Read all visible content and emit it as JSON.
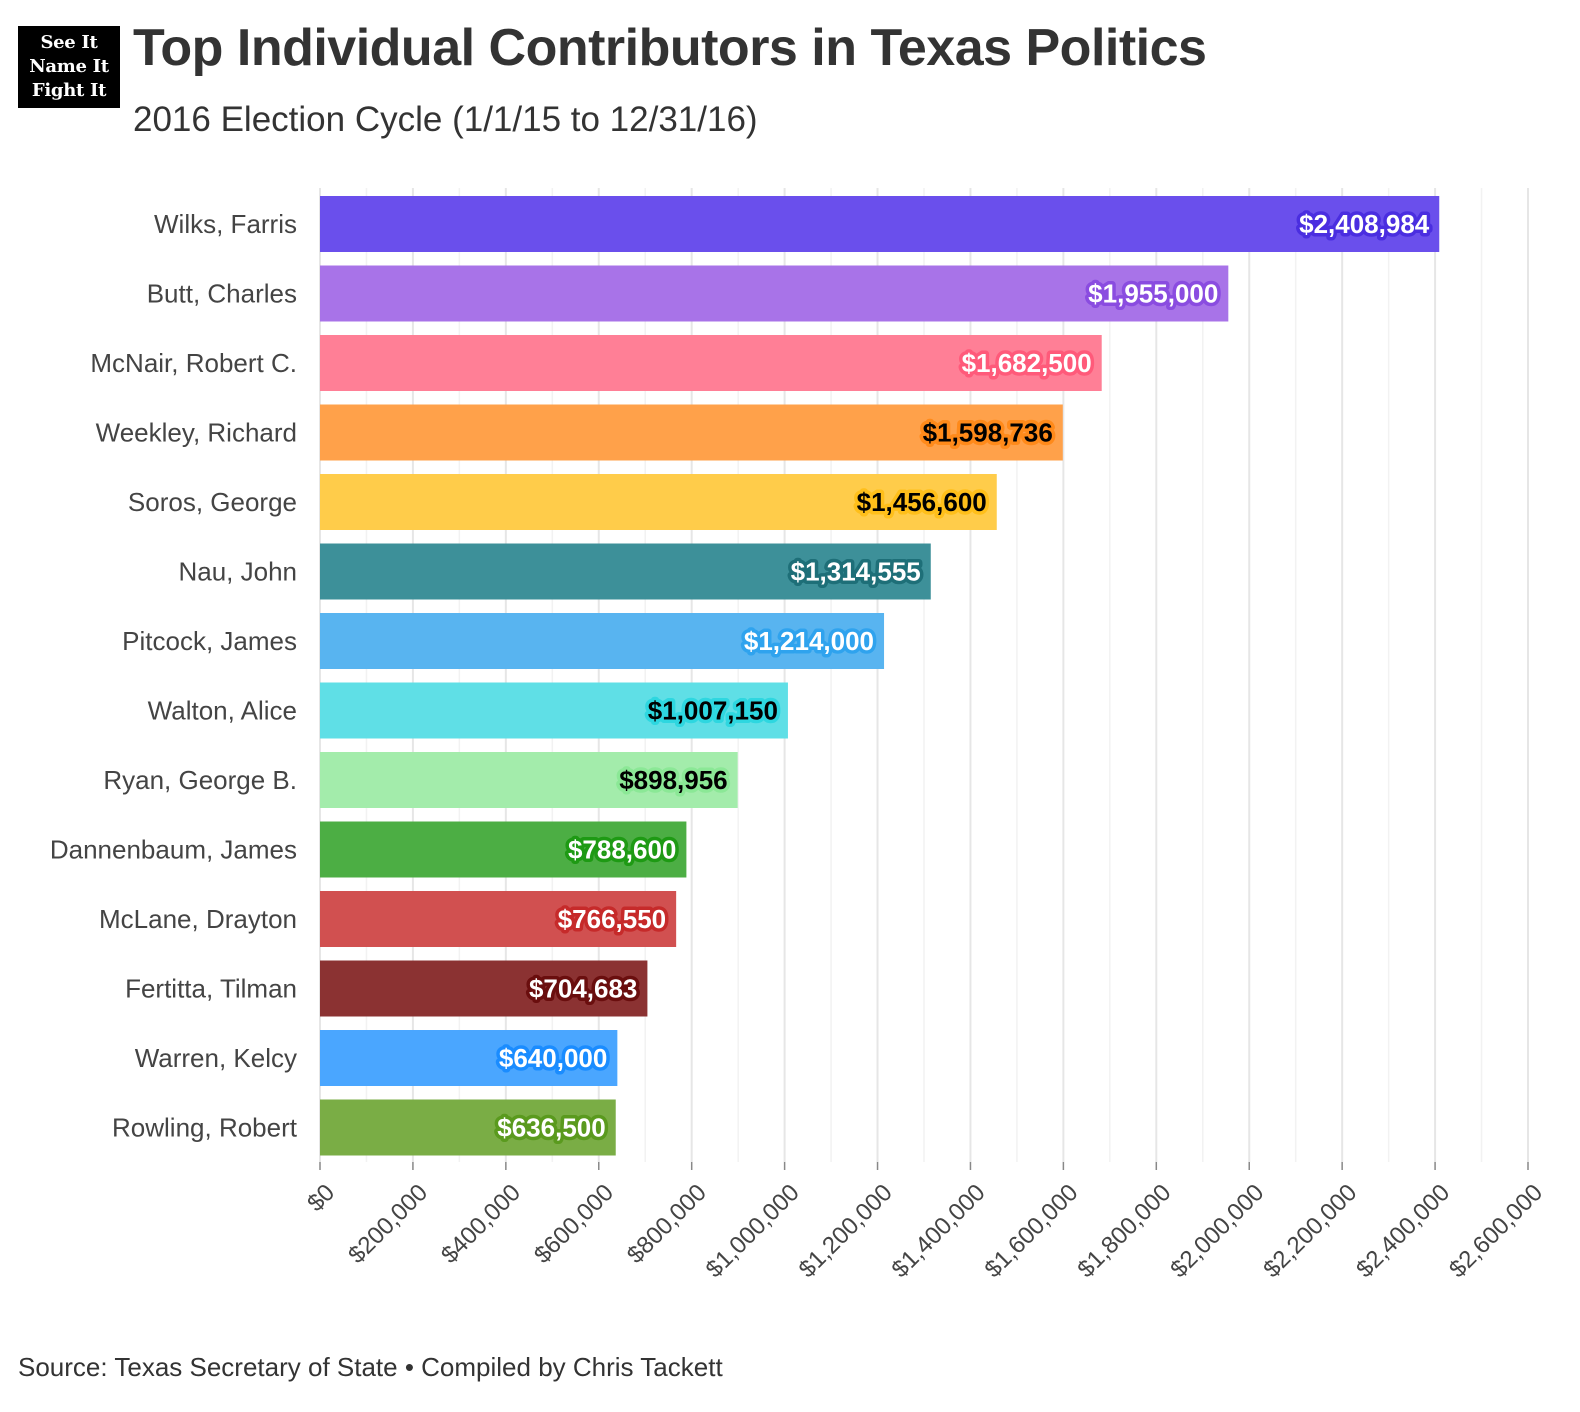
{
  "header": {
    "logo_lines": [
      "See It",
      "Name It",
      "Fight It"
    ],
    "title": "Top Individual Contributors in Texas Politics",
    "subtitle": "2016 Election Cycle (1/1/15 to 12/31/16)"
  },
  "footer": {
    "caption": "Source: Texas Secretary of State • Compiled by Chris Tackett"
  },
  "chart_data": {
    "type": "bar",
    "orientation": "horizontal",
    "title": "Top Individual Contributors in Texas Politics",
    "subtitle": "2016 Election Cycle (1/1/15 to 12/31/16)",
    "xlabel": "",
    "ylabel": "",
    "xlim": [
      0,
      2600000
    ],
    "grid": true,
    "legend": "none",
    "categories": [
      "Wilks, Farris",
      "Butt, Charles",
      "McNair, Robert C.",
      "Weekley, Richard",
      "Soros, George",
      "Nau, John",
      "Pitcock, James",
      "Walton, Alice",
      "Ryan, George B.",
      "Dannenbaum, James",
      "McLane, Drayton",
      "Fertitta, Tilman",
      "Warren, Kelcy",
      "Rowling, Robert"
    ],
    "values": [
      2408984,
      1955000,
      1682500,
      1598736,
      1456600,
      1314555,
      1214000,
      1007150,
      898956,
      788600,
      766550,
      704683,
      640000,
      636500
    ],
    "value_labels": [
      "$2,408,984",
      "$1,955,000",
      "$1,682,500",
      "$1,598,736",
      "$1,456,600",
      "$1,314,555",
      "$1,214,000",
      "$1,007,150",
      "$898,956",
      "$788,600",
      "$766,550",
      "$704,683",
      "$640,000",
      "$636,500"
    ],
    "bar_colors": [
      "#6a4fec",
      "#a873e8",
      "#ff7f96",
      "#ffa14a",
      "#ffcc4a",
      "#3d9099",
      "#58b4f0",
      "#5fdfe6",
      "#a3ecab",
      "#4cae44",
      "#d15050",
      "#8b3232",
      "#4aa6ff",
      "#7aad45"
    ],
    "label_text_colors": [
      "#ffffff",
      "#ffffff",
      "#ffffff",
      "#000000",
      "#000000",
      "#ffffff",
      "#ffffff",
      "#000000",
      "#000000",
      "#ffffff",
      "#ffffff",
      "#ffffff",
      "#ffffff",
      "#ffffff"
    ],
    "label_outline_colors": [
      "#4a2ee0",
      "#8a4ce0",
      "#ff5a7a",
      "#ff8a1a",
      "#ffbf1a",
      "#1e6f78",
      "#2fa3ee",
      "#2ed7e0",
      "#8be896",
      "#1e9a14",
      "#c62a2a",
      "#6a0e0e",
      "#1a8cff",
      "#5a9a1e"
    ],
    "x_ticks": [
      0,
      200000,
      400000,
      600000,
      800000,
      1000000,
      1200000,
      1400000,
      1600000,
      1800000,
      2000000,
      2200000,
      2400000,
      2600000
    ],
    "x_tick_labels": [
      "$0",
      "$200,000",
      "$400,000",
      "$600,000",
      "$800,000",
      "$1,000,000",
      "$1,200,000",
      "$1,400,000",
      "$1,600,000",
      "$1,800,000",
      "$2,000,000",
      "$2,200,000",
      "$2,400,000",
      "$2,600,000"
    ]
  }
}
